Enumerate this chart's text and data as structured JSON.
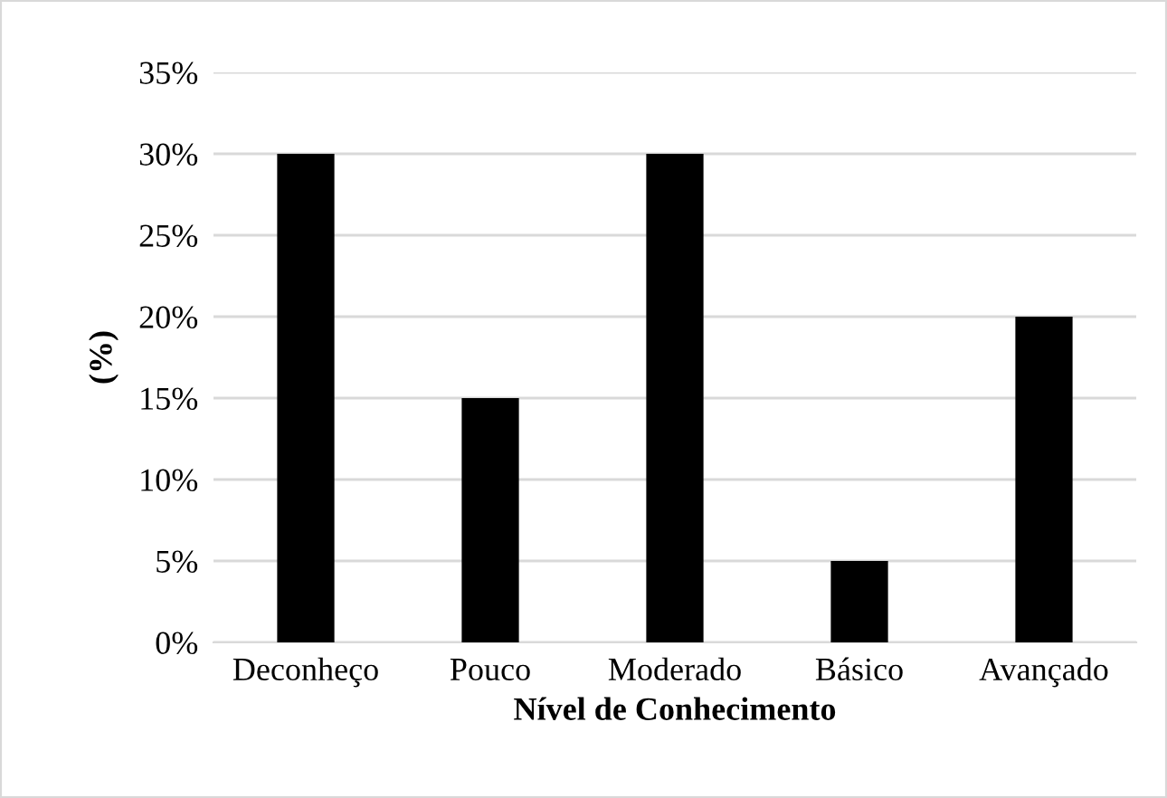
{
  "chart_data": {
    "type": "bar",
    "xlabel": "Nível de Conhecimento",
    "ylabel": "(%)",
    "categories": [
      "Deconheço",
      "Pouco",
      "Moderado",
      "Básico",
      "Avançado"
    ],
    "values": [
      30,
      15,
      30,
      5,
      20
    ],
    "color": "#000000",
    "ylim": [
      0,
      35
    ],
    "yticks": [
      {
        "value": 0,
        "label": "0%"
      },
      {
        "value": 5,
        "label": "5%"
      },
      {
        "value": 10,
        "label": "10%"
      },
      {
        "value": 15,
        "label": "15%"
      },
      {
        "value": 20,
        "label": "20%"
      },
      {
        "value": 25,
        "label": "25%"
      },
      {
        "value": 30,
        "label": "30%"
      },
      {
        "value": 35,
        "label": "35%"
      }
    ],
    "grid": "y"
  }
}
